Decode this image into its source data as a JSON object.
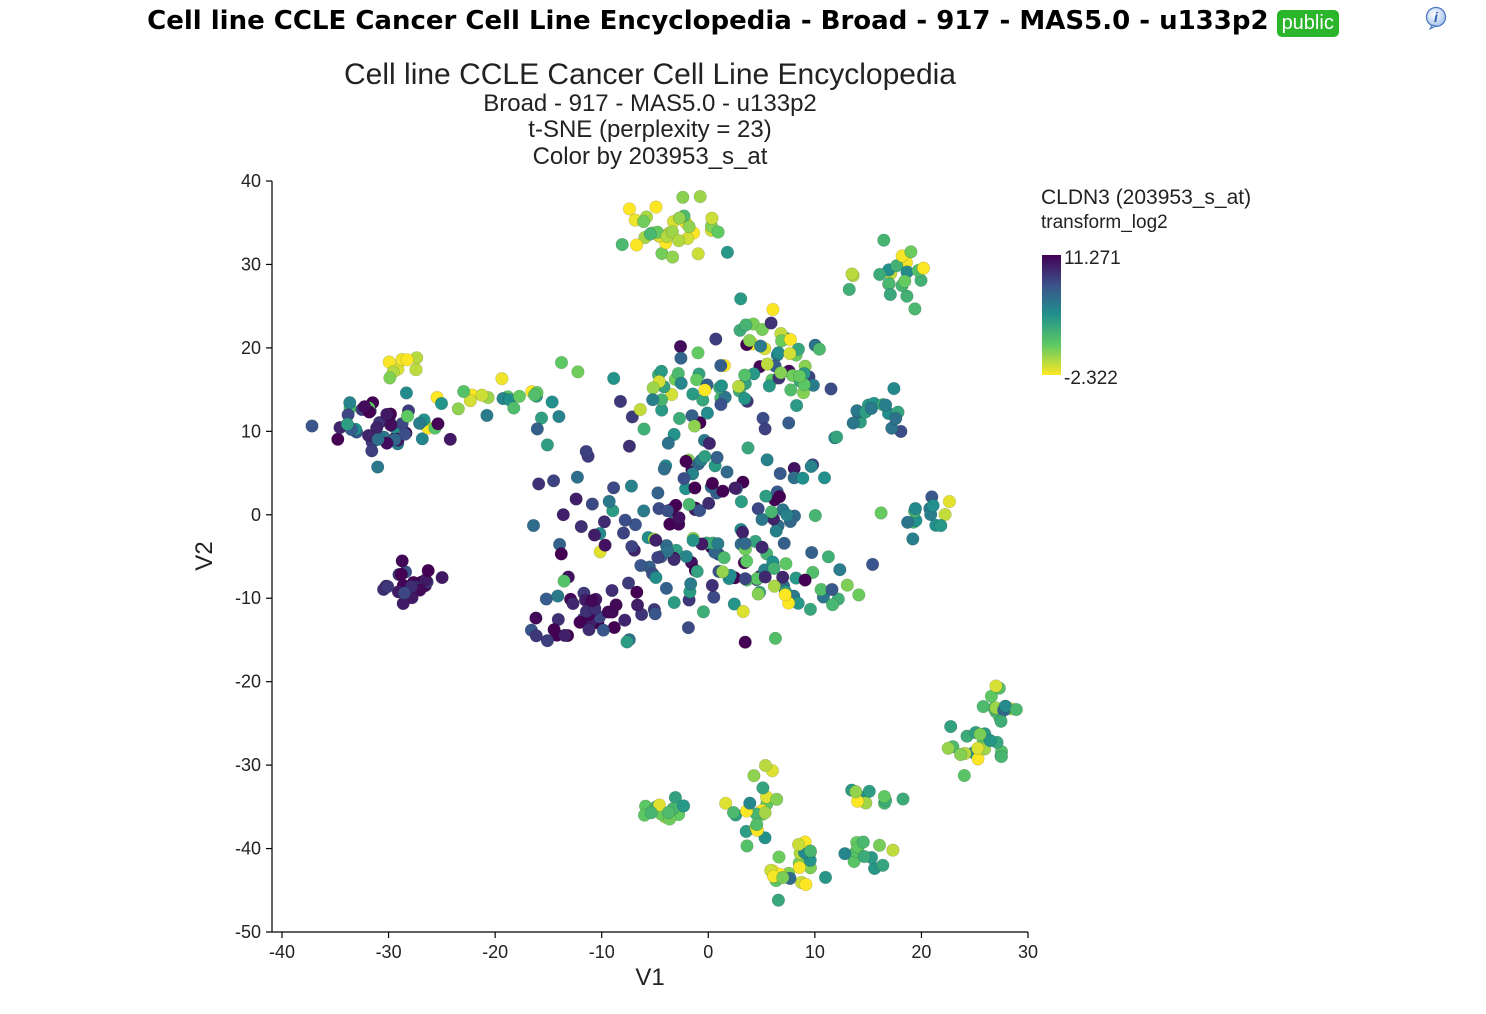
{
  "header": {
    "title": "Cell line CCLE Cancer Cell Line Encyclopedia - Broad - 917 - MAS5.0 - u133p2",
    "badge": "public",
    "info_icon": "info-icon"
  },
  "colors": {
    "badge_bg": "#2bb52b",
    "colormap": [
      "#440154",
      "#3b528b",
      "#21918c",
      "#5ec962",
      "#fde725"
    ]
  },
  "chart_data": {
    "type": "scatter",
    "title": "Cell line CCLE Cancer Cell Line Encyclopedia",
    "subtitles": [
      "Broad - 917 - MAS5.0 - u133p2",
      "t-SNE (perplexity = 23)",
      "Color by 203953_s_at"
    ],
    "xlabel": "V1",
    "ylabel": "V2",
    "xlim": [
      -40,
      30
    ],
    "ylim": [
      -50,
      40
    ],
    "xticks": [
      -40,
      -30,
      -20,
      -10,
      0,
      10,
      20,
      30
    ],
    "yticks": [
      -50,
      -40,
      -30,
      -20,
      -10,
      0,
      10,
      20,
      30,
      40
    ],
    "grid": false,
    "legend": {
      "title": "CLDN3 (203953_s_at)",
      "subtitle": "transform_log2",
      "max_label": "11.271",
      "min_label": "-2.322",
      "max": 11.271,
      "min": -2.322,
      "colormap": "viridis"
    },
    "clusters": [
      {
        "cx": -3.5,
        "cy": 34.0,
        "sx": 2.2,
        "sy": 2.0,
        "n": 35,
        "level": 0.88,
        "spread": 0.12
      },
      {
        "cx": 17.5,
        "cy": 28.5,
        "sx": 1.8,
        "sy": 1.6,
        "n": 22,
        "level": 0.72,
        "spread": 0.2
      },
      {
        "cx": -28.5,
        "cy": 17.8,
        "sx": 1.0,
        "sy": 0.7,
        "n": 8,
        "level": 0.9,
        "spread": 0.08
      },
      {
        "cx": -21.5,
        "cy": 14.5,
        "sx": 2.2,
        "sy": 1.2,
        "n": 9,
        "level": 0.85,
        "spread": 0.12
      },
      {
        "cx": -31.0,
        "cy": 10.5,
        "sx": 2.5,
        "sy": 2.0,
        "n": 40,
        "level": 0.22,
        "spread": 0.2
      },
      {
        "cx": -26.0,
        "cy": 11.0,
        "sx": 2.0,
        "sy": 1.5,
        "n": 10,
        "level": 0.5,
        "spread": 0.2
      },
      {
        "cx": -15.5,
        "cy": 13.0,
        "sx": 2.0,
        "sy": 1.8,
        "n": 14,
        "level": 0.55,
        "spread": 0.2
      },
      {
        "cx": -28.0,
        "cy": -8.5,
        "sx": 1.8,
        "sy": 1.0,
        "n": 22,
        "level": 0.06,
        "spread": 0.1
      },
      {
        "cx": -11.0,
        "cy": -12.0,
        "sx": 2.3,
        "sy": 2.0,
        "n": 40,
        "level": 0.08,
        "spread": 0.12
      },
      {
        "cx": 0.5,
        "cy": 2.0,
        "sx": 5.5,
        "sy": 6.5,
        "n": 130,
        "level": 0.3,
        "spread": 0.25
      },
      {
        "cx": -7.0,
        "cy": -3.0,
        "sx": 5.0,
        "sy": 5.0,
        "n": 40,
        "level": 0.22,
        "spread": 0.18
      },
      {
        "cx": 6.0,
        "cy": 19.0,
        "sx": 3.0,
        "sy": 3.5,
        "n": 50,
        "level": 0.62,
        "spread": 0.25
      },
      {
        "cx": -3.0,
        "cy": 16.0,
        "sx": 3.0,
        "sy": 2.0,
        "n": 20,
        "level": 0.7,
        "spread": 0.22
      },
      {
        "cx": 7.0,
        "cy": -8.0,
        "sx": 4.0,
        "sy": 2.3,
        "n": 45,
        "level": 0.58,
        "spread": 0.28
      },
      {
        "cx": 15.0,
        "cy": 12.0,
        "sx": 1.8,
        "sy": 1.8,
        "n": 18,
        "level": 0.5,
        "spread": 0.2
      },
      {
        "cx": 20.5,
        "cy": 1.0,
        "sx": 1.3,
        "sy": 1.8,
        "n": 14,
        "level": 0.55,
        "spread": 0.15
      },
      {
        "cx": 27.5,
        "cy": -23.0,
        "sx": 1.0,
        "sy": 1.0,
        "n": 14,
        "level": 0.68,
        "spread": 0.15
      },
      {
        "cx": 25.0,
        "cy": -28.0,
        "sx": 1.6,
        "sy": 1.2,
        "n": 20,
        "level": 0.72,
        "spread": 0.15
      },
      {
        "cx": -4.0,
        "cy": -35.5,
        "sx": 1.3,
        "sy": 1.2,
        "n": 14,
        "level": 0.68,
        "spread": 0.18
      },
      {
        "cx": 4.5,
        "cy": -35.0,
        "sx": 1.2,
        "sy": 2.8,
        "n": 22,
        "level": 0.78,
        "spread": 0.15
      },
      {
        "cx": 8.0,
        "cy": -42.0,
        "sx": 1.8,
        "sy": 1.5,
        "n": 24,
        "level": 0.8,
        "spread": 0.15
      },
      {
        "cx": 15.0,
        "cy": -34.0,
        "sx": 1.2,
        "sy": 0.8,
        "n": 10,
        "level": 0.78,
        "spread": 0.15
      },
      {
        "cx": 14.5,
        "cy": -40.5,
        "sx": 1.5,
        "sy": 1.0,
        "n": 12,
        "level": 0.72,
        "spread": 0.18
      }
    ]
  }
}
